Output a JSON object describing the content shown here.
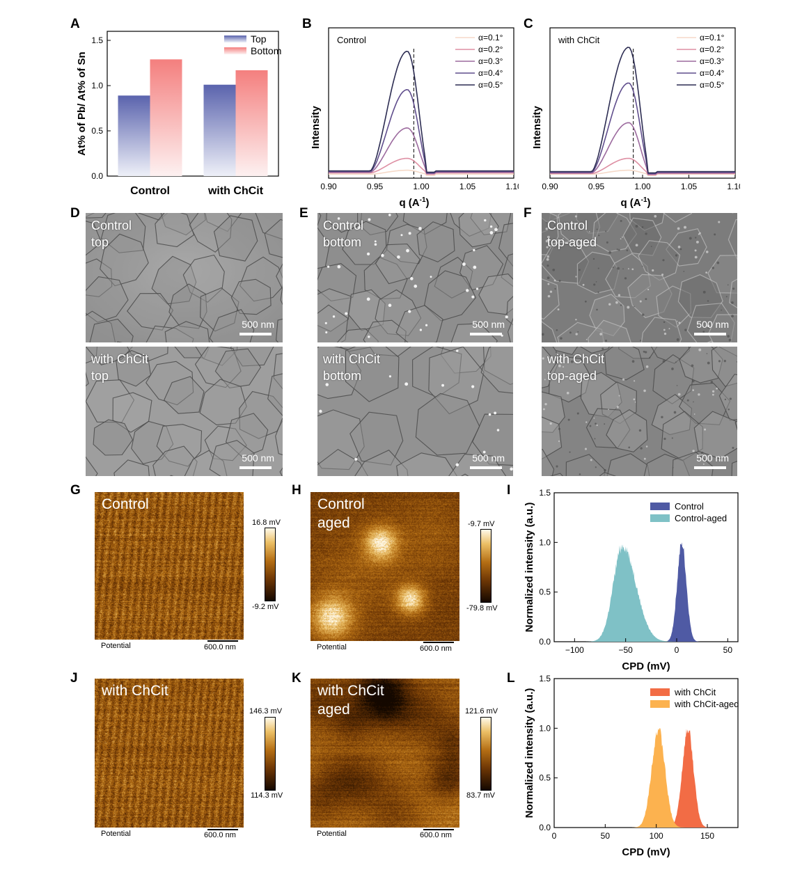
{
  "panel_labels": [
    "A",
    "B",
    "C",
    "D",
    "E",
    "F",
    "G",
    "H",
    "I",
    "J",
    "K",
    "L"
  ],
  "colors": {
    "top_bar": "#5a63ad",
    "bottom_bar": "#f47f7e",
    "control_hist": "#4f5aa4",
    "control_aged_hist": "#7fc1c6",
    "chcit_hist": "#f26c45",
    "chcit_aged_hist": "#fcb24f",
    "gi_colors": [
      "#f5d9c8",
      "#de8fa3",
      "#9c6a9e",
      "#5f4d8c",
      "#2c2c52"
    ]
  },
  "chart_data": [
    {
      "panel": "A",
      "type": "bar",
      "categories": [
        "Control",
        "with ChCit"
      ],
      "series": [
        {
          "name": "Top",
          "values": [
            0.89,
            1.01
          ]
        },
        {
          "name": "Bottom",
          "values": [
            1.29,
            1.17
          ]
        }
      ],
      "ylabel": "At% of Pb/ At% of Sn",
      "xlabel": "",
      "ylim": [
        0,
        1.6
      ],
      "yticks": [
        "0.0",
        "0.5",
        "1.0",
        "1.5"
      ],
      "legend": "top-right"
    },
    {
      "panel": "B",
      "type": "line",
      "annotation": "Control",
      "xlabel": "q (A",
      "xlabel_sup": "-1",
      "ylabel": "Intensity",
      "xlim": [
        0.9,
        1.1
      ],
      "xticks": [
        "0.90",
        "0.95",
        "1.00",
        "1.05",
        "1.10"
      ],
      "ref_line_x": 0.992,
      "series": [
        {
          "name": "α=0.1°",
          "peak": 0.06,
          "base": 0.03
        },
        {
          "name": "α=0.2°",
          "peak": 0.15,
          "base": 0.04
        },
        {
          "name": "α=0.3°",
          "peak": 0.38,
          "base": 0.045
        },
        {
          "name": "α=0.4°",
          "peak": 0.67,
          "base": 0.05
        },
        {
          "name": "α=0.5°",
          "peak": 0.96,
          "base": 0.055
        }
      ]
    },
    {
      "panel": "C",
      "type": "line",
      "annotation": "with ChCit",
      "xlabel": "q (A",
      "xlabel_sup": "-1",
      "ylabel": "Intensity",
      "xlim": [
        0.9,
        1.1
      ],
      "xticks": [
        "0.90",
        "0.95",
        "1.00",
        "1.05",
        "1.10"
      ],
      "ref_line_x": 0.99,
      "series": [
        {
          "name": "α=0.1°",
          "peak": 0.06,
          "base": 0.03
        },
        {
          "name": "α=0.2°",
          "peak": 0.15,
          "base": 0.035
        },
        {
          "name": "α=0.3°",
          "peak": 0.42,
          "base": 0.04
        },
        {
          "name": "α=0.4°",
          "peak": 0.72,
          "base": 0.045
        },
        {
          "name": "α=0.5°",
          "peak": 0.99,
          "base": 0.05
        }
      ]
    },
    {
      "panel": "I",
      "type": "area",
      "xlabel": "CPD (mV)",
      "ylabel": "Normalized intensity (a.u.)",
      "xlim": [
        -120,
        60
      ],
      "ylim": [
        0,
        1.5
      ],
      "xticks": [
        "−100",
        "−50",
        "0",
        "50"
      ],
      "yticks": [
        "0.0",
        "0.5",
        "1.0",
        "1.5"
      ],
      "series": [
        {
          "name": "Control",
          "center": 5,
          "sigma": 4.5,
          "peak": 1.0
        },
        {
          "name": "Control-aged",
          "center": -53,
          "sigma": 9,
          "peak": 0.98
        }
      ]
    },
    {
      "panel": "L",
      "type": "area",
      "xlabel": "CPD (mV)",
      "ylabel": "Normalized intensity (a.u.)",
      "xlim": [
        0,
        180
      ],
      "ylim": [
        0,
        1.5
      ],
      "xticks": [
        "0",
        "50",
        "100",
        "150"
      ],
      "yticks": [
        "0.0",
        "0.5",
        "1.0",
        "1.5"
      ],
      "series": [
        {
          "name": "with ChCit",
          "center": 131,
          "sigma": 5.5,
          "peak": 1.0
        },
        {
          "name": "with ChCit-aged",
          "center": 102,
          "sigma": 6.5,
          "peak": 1.0
        }
      ]
    }
  ],
  "sem_images": [
    {
      "panel": "D",
      "title_lines": [
        "Control",
        "top"
      ],
      "scale": "500 nm"
    },
    {
      "panel": "D",
      "title_lines": [
        "with ChCit",
        "top"
      ],
      "scale": "500 nm"
    },
    {
      "panel": "E",
      "title_lines": [
        "Control",
        "bottom"
      ],
      "scale": "500 nm"
    },
    {
      "panel": "E",
      "title_lines": [
        "with ChCit",
        "bottom"
      ],
      "scale": "500 nm"
    },
    {
      "panel": "F",
      "title_lines": [
        "Control",
        "top-aged"
      ],
      "scale": "500 nm"
    },
    {
      "panel": "F",
      "title_lines": [
        "with ChCit",
        "top-aged"
      ],
      "scale": "500 nm"
    }
  ],
  "afm_images": [
    {
      "panel": "G",
      "title_lines": [
        "Control"
      ],
      "potential_label": "Potential",
      "scale": "600.0 nm",
      "cbar_max": "16.8 mV",
      "cbar_min": "-9.2 mV"
    },
    {
      "panel": "H",
      "title_lines": [
        "Control",
        "aged"
      ],
      "potential_label": "Potential",
      "scale": "600.0 nm",
      "cbar_max": "-9.7 mV",
      "cbar_min": "-79.8 mV"
    },
    {
      "panel": "J",
      "title_lines": [
        "with ChCit"
      ],
      "potential_label": "Potential",
      "scale": "600.0 nm",
      "cbar_max": "146.3 mV",
      "cbar_min": "114.3 mV"
    },
    {
      "panel": "K",
      "title_lines": [
        "with ChCit",
        "aged"
      ],
      "potential_label": "Potential",
      "scale": "600.0 nm",
      "cbar_max": "121.6 mV",
      "cbar_min": "83.7 mV"
    }
  ]
}
